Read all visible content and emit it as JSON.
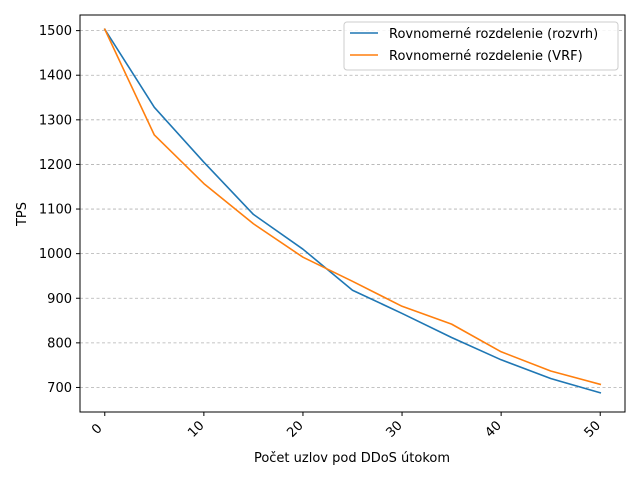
{
  "chart_data": {
    "type": "line",
    "xlabel": "Počet uzlov pod DDoS útokom",
    "ylabel": "TPS",
    "x": [
      0,
      5,
      10,
      15,
      20,
      25,
      30,
      35,
      40,
      45,
      50
    ],
    "x_ticks": [
      "0",
      "10",
      "20",
      "30",
      "40",
      "50"
    ],
    "y_ticks": [
      "700",
      "800",
      "900",
      "1000",
      "1100",
      "1200",
      "1300",
      "1400",
      "1500"
    ],
    "xlim": [
      -2.5,
      52.5
    ],
    "ylim": [
      645,
      1535
    ],
    "grid": "y-dashed",
    "legend_position": "upper right",
    "series": [
      {
        "name": "Rovnomerné rozdelenie (rozvrh)",
        "color": "#1f77b4",
        "values": [
          1503,
          1328,
          1205,
          1088,
          1010,
          918,
          866,
          812,
          762,
          720,
          688
        ]
      },
      {
        "name": "Rovnomerné rozdelenie (VRF)",
        "color": "#ff7f0e",
        "values": [
          1503,
          1266,
          1157,
          1067,
          992,
          938,
          882,
          842,
          780,
          737,
          707
        ]
      }
    ]
  }
}
